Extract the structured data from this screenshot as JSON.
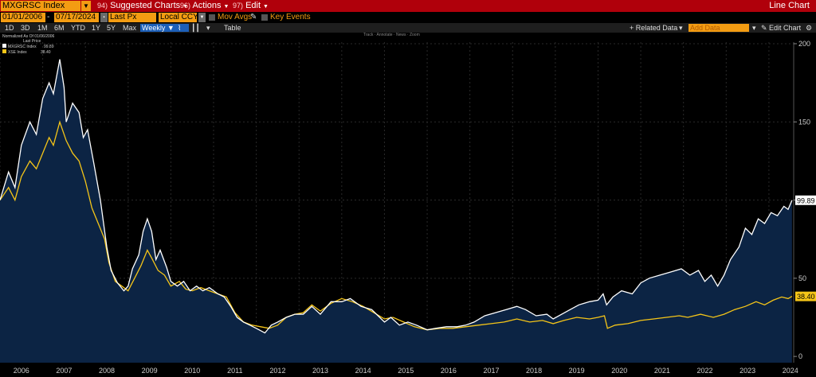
{
  "toolbar": {
    "ticker": "MXGRSC Index",
    "menus": [
      {
        "num": "94)",
        "label": "Suggested Charts"
      },
      {
        "num": "96)",
        "label": "Actions"
      },
      {
        "num": "97)",
        "label": "Edit"
      }
    ],
    "chart_title": "Line Chart"
  },
  "controls": {
    "start_date": "01/01/2006",
    "end_date": "07/17/2024",
    "field": "Last Px",
    "currency": "Local CCY",
    "mov_avgs": "Mov Avgs",
    "key_events": "Key Events"
  },
  "ranges": {
    "items": [
      "1D",
      "3D",
      "1M",
      "6M",
      "YTD",
      "1Y",
      "5Y",
      "Max"
    ],
    "frequency": "Weekly",
    "table": "Table",
    "related_data": "+ Related Data",
    "add_data_placeholder": "Add Data",
    "edit_chart": "Edit Chart"
  },
  "chart_data": {
    "type": "line",
    "note": "Normalized As Of 01/06/2006",
    "legend_header": "Last Price",
    "tools": [
      "Track",
      "Annotate",
      "News",
      "Zoom"
    ],
    "ylim": [
      -4,
      201
    ],
    "yticks": [
      0,
      50,
      100,
      150,
      200
    ],
    "xticks": [
      "2006",
      "2007",
      "2008",
      "2009",
      "2010",
      "2011",
      "2012",
      "2013",
      "2014",
      "2015",
      "2016",
      "2017",
      "2018",
      "2019",
      "2020",
      "2021",
      "2022",
      "2023",
      "2024"
    ],
    "series": [
      {
        "name": "MXGRSC Index",
        "last": "99.89",
        "color": "#ffffff",
        "points": [
          [
            2006.0,
            100
          ],
          [
            2006.2,
            118
          ],
          [
            2006.35,
            108
          ],
          [
            2006.5,
            135
          ],
          [
            2006.7,
            150
          ],
          [
            2006.85,
            142
          ],
          [
            2007.0,
            165
          ],
          [
            2007.15,
            175
          ],
          [
            2007.25,
            168
          ],
          [
            2007.4,
            190
          ],
          [
            2007.5,
            172
          ],
          [
            2007.55,
            150
          ],
          [
            2007.7,
            162
          ],
          [
            2007.85,
            156
          ],
          [
            2007.95,
            140
          ],
          [
            2008.05,
            145
          ],
          [
            2008.2,
            123
          ],
          [
            2008.35,
            100
          ],
          [
            2008.5,
            70
          ],
          [
            2008.6,
            55
          ],
          [
            2008.75,
            47
          ],
          [
            2008.9,
            42
          ],
          [
            2009.0,
            45
          ],
          [
            2009.1,
            56
          ],
          [
            2009.25,
            65
          ],
          [
            2009.35,
            80
          ],
          [
            2009.45,
            88
          ],
          [
            2009.55,
            80
          ],
          [
            2009.65,
            62
          ],
          [
            2009.75,
            68
          ],
          [
            2009.9,
            57
          ],
          [
            2010.0,
            48
          ],
          [
            2010.15,
            45
          ],
          [
            2010.3,
            48
          ],
          [
            2010.45,
            42
          ],
          [
            2010.6,
            45
          ],
          [
            2010.75,
            42
          ],
          [
            2010.9,
            44
          ],
          [
            2011.1,
            40
          ],
          [
            2011.25,
            38
          ],
          [
            2011.4,
            32
          ],
          [
            2011.55,
            25
          ],
          [
            2011.7,
            22
          ],
          [
            2011.85,
            20
          ],
          [
            2012.0,
            18
          ],
          [
            2012.2,
            15
          ],
          [
            2012.35,
            20
          ],
          [
            2012.5,
            22
          ],
          [
            2012.7,
            25
          ],
          [
            2012.9,
            27
          ],
          [
            2013.1,
            27
          ],
          [
            2013.3,
            32
          ],
          [
            2013.5,
            27
          ],
          [
            2013.75,
            35
          ],
          [
            2014.0,
            35
          ],
          [
            2014.2,
            37
          ],
          [
            2014.45,
            32
          ],
          [
            2014.7,
            30
          ],
          [
            2014.85,
            26
          ],
          [
            2015.0,
            22
          ],
          [
            2015.15,
            25
          ],
          [
            2015.35,
            20
          ],
          [
            2015.55,
            22
          ],
          [
            2015.75,
            20
          ],
          [
            2016.0,
            17
          ],
          [
            2016.2,
            18
          ],
          [
            2016.45,
            19
          ],
          [
            2016.7,
            19
          ],
          [
            2016.9,
            20
          ],
          [
            2017.1,
            22
          ],
          [
            2017.35,
            26
          ],
          [
            2017.6,
            28
          ],
          [
            2017.85,
            30
          ],
          [
            2018.1,
            32
          ],
          [
            2018.3,
            30
          ],
          [
            2018.55,
            26
          ],
          [
            2018.8,
            27
          ],
          [
            2018.95,
            24
          ],
          [
            2019.15,
            27
          ],
          [
            2019.35,
            30
          ],
          [
            2019.55,
            33
          ],
          [
            2019.8,
            35
          ],
          [
            2020.0,
            36
          ],
          [
            2020.12,
            40
          ],
          [
            2020.2,
            33
          ],
          [
            2020.35,
            38
          ],
          [
            2020.55,
            42
          ],
          [
            2020.8,
            40
          ],
          [
            2021.0,
            47
          ],
          [
            2021.2,
            50
          ],
          [
            2021.45,
            52
          ],
          [
            2021.7,
            54
          ],
          [
            2021.95,
            56
          ],
          [
            2022.15,
            52
          ],
          [
            2022.35,
            55
          ],
          [
            2022.5,
            48
          ],
          [
            2022.65,
            52
          ],
          [
            2022.8,
            45
          ],
          [
            2022.95,
            52
          ],
          [
            2023.1,
            62
          ],
          [
            2023.3,
            70
          ],
          [
            2023.45,
            82
          ],
          [
            2023.6,
            78
          ],
          [
            2023.75,
            88
          ],
          [
            2023.9,
            85
          ],
          [
            2024.05,
            92
          ],
          [
            2024.2,
            90
          ],
          [
            2024.35,
            96
          ],
          [
            2024.45,
            94
          ],
          [
            2024.54,
            99.89
          ]
        ]
      },
      {
        "name": "XSE Index",
        "last": "38.40",
        "color": "#f5c518",
        "points": [
          [
            2006.0,
            100
          ],
          [
            2006.2,
            108
          ],
          [
            2006.35,
            100
          ],
          [
            2006.5,
            115
          ],
          [
            2006.7,
            125
          ],
          [
            2006.85,
            120
          ],
          [
            2007.0,
            130
          ],
          [
            2007.15,
            140
          ],
          [
            2007.25,
            135
          ],
          [
            2007.4,
            150
          ],
          [
            2007.55,
            138
          ],
          [
            2007.7,
            130
          ],
          [
            2007.85,
            125
          ],
          [
            2008.0,
            112
          ],
          [
            2008.15,
            95
          ],
          [
            2008.3,
            85
          ],
          [
            2008.45,
            75
          ],
          [
            2008.55,
            60
          ],
          [
            2008.7,
            48
          ],
          [
            2008.85,
            45
          ],
          [
            2009.0,
            42
          ],
          [
            2009.15,
            50
          ],
          [
            2009.3,
            58
          ],
          [
            2009.45,
            68
          ],
          [
            2009.55,
            63
          ],
          [
            2009.7,
            55
          ],
          [
            2009.85,
            52
          ],
          [
            2010.0,
            45
          ],
          [
            2010.2,
            48
          ],
          [
            2010.35,
            43
          ],
          [
            2010.5,
            42
          ],
          [
            2010.7,
            44
          ],
          [
            2010.9,
            42
          ],
          [
            2011.1,
            40
          ],
          [
            2011.3,
            38
          ],
          [
            2011.5,
            28
          ],
          [
            2011.7,
            22
          ],
          [
            2011.9,
            20
          ],
          [
            2012.1,
            19
          ],
          [
            2012.3,
            18
          ],
          [
            2012.5,
            20
          ],
          [
            2012.7,
            25
          ],
          [
            2012.9,
            27
          ],
          [
            2013.1,
            28
          ],
          [
            2013.3,
            33
          ],
          [
            2013.5,
            29
          ],
          [
            2013.75,
            34
          ],
          [
            2014.0,
            37
          ],
          [
            2014.25,
            35
          ],
          [
            2014.5,
            32
          ],
          [
            2014.75,
            28
          ],
          [
            2015.0,
            24
          ],
          [
            2015.2,
            25
          ],
          [
            2015.45,
            22
          ],
          [
            2015.7,
            19
          ],
          [
            2016.0,
            17
          ],
          [
            2016.3,
            18
          ],
          [
            2016.6,
            18
          ],
          [
            2016.9,
            19
          ],
          [
            2017.2,
            20
          ],
          [
            2017.5,
            21
          ],
          [
            2017.8,
            22
          ],
          [
            2018.1,
            24
          ],
          [
            2018.4,
            22
          ],
          [
            2018.7,
            23
          ],
          [
            2018.95,
            21
          ],
          [
            2019.2,
            23
          ],
          [
            2019.5,
            25
          ],
          [
            2019.8,
            24
          ],
          [
            2020.0,
            25
          ],
          [
            2020.15,
            26
          ],
          [
            2020.22,
            18
          ],
          [
            2020.4,
            20
          ],
          [
            2020.7,
            21
          ],
          [
            2021.0,
            23
          ],
          [
            2021.3,
            24
          ],
          [
            2021.6,
            25
          ],
          [
            2021.9,
            26
          ],
          [
            2022.1,
            25
          ],
          [
            2022.4,
            27
          ],
          [
            2022.7,
            25
          ],
          [
            2022.95,
            27
          ],
          [
            2023.2,
            30
          ],
          [
            2023.45,
            32
          ],
          [
            2023.7,
            35
          ],
          [
            2023.9,
            33
          ],
          [
            2024.1,
            36
          ],
          [
            2024.3,
            38
          ],
          [
            2024.45,
            37
          ],
          [
            2024.54,
            38.4
          ]
        ]
      }
    ]
  }
}
